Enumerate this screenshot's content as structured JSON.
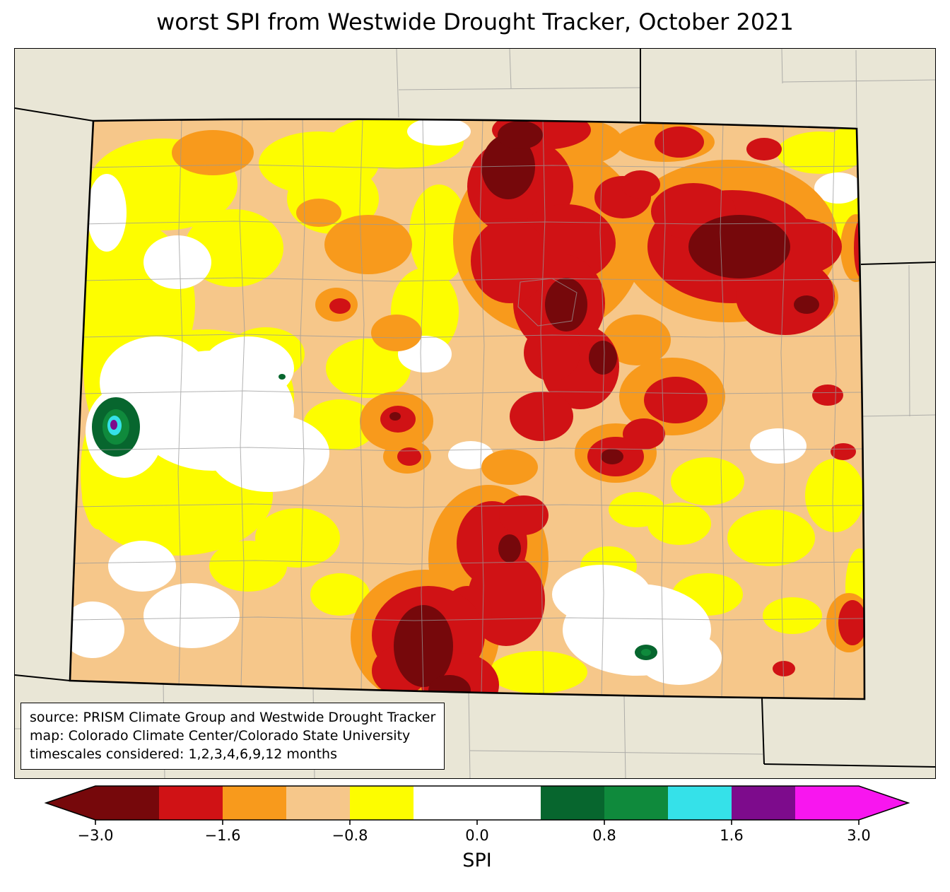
{
  "title": "worst SPI from Westwide Drought Tracker, October 2021",
  "source_box": {
    "lines": [
      "source: PRISM Climate Group and Westwide Drought Tracker",
      "map: Colorado Climate Center/Colorado State University",
      "timescales considered: 1,2,3,4,6,9,12 months"
    ]
  },
  "colorbar": {
    "label": "SPI",
    "tick_labels": [
      "−3.0",
      "−1.6",
      "−0.8",
      "0.0",
      "0.8",
      "1.6",
      "3.0"
    ],
    "tick_values": [
      -3.0,
      -1.6,
      -0.8,
      0.0,
      0.8,
      1.6,
      3.0
    ],
    "segment_colors": [
      "#76080b",
      "#d01215",
      "#f89a1c",
      "#f6c78a",
      "#fdfd00",
      "#ffffff",
      "#ffffff",
      "#07662e",
      "#0f8a3c",
      "#35e1e9",
      "#7d0b8c",
      "#f816ef"
    ],
    "under_arrow_color": "#76080b",
    "over_arrow_color": "#f816ef"
  },
  "colors": {
    "beige": "#e9e6d6",
    "tan": "#f6c78a",
    "yellow": "#fdfd00",
    "orange": "#f89a1c",
    "red": "#d01215",
    "maroon": "#76080b",
    "green_dark": "#07662e",
    "green": "#0f8a3c",
    "cyan": "#35e1e9",
    "purple": "#7d0b8c",
    "magenta": "#f816ef",
    "county_line": "#999999",
    "border": "#000000"
  },
  "chart_data": {
    "type": "heatmap",
    "title": "worst SPI from Westwide Drought Tracker, October 2021",
    "region": "Colorado (thick border) with surrounding state and county boundaries",
    "variable": "SPI (Standardized Precipitation Index), worst value across timescales",
    "timescales_months": [
      1,
      2,
      3,
      4,
      6,
      9,
      12
    ],
    "colorbar_label": "SPI",
    "colorbar_ticks": [
      -3.0,
      -1.6,
      -0.8,
      0.0,
      0.8,
      1.6,
      3.0
    ],
    "colorbar_range": [
      -3.0,
      3.0
    ],
    "colorbar_extends": "both ends (arrowheads)",
    "legend_position": "bottom horizontal colorbar",
    "notes": "Mostly negative SPI (drought) across Colorado: widespread tan/yellow/orange; deep red with maroon cores in north-central, northeast (large maroon patch), east-central and south-central Colorado; small positive-SPI anomalies (dark green/green/cyan/purple bullseye) on the far west edge and a small green spot in the southeast white area."
  }
}
